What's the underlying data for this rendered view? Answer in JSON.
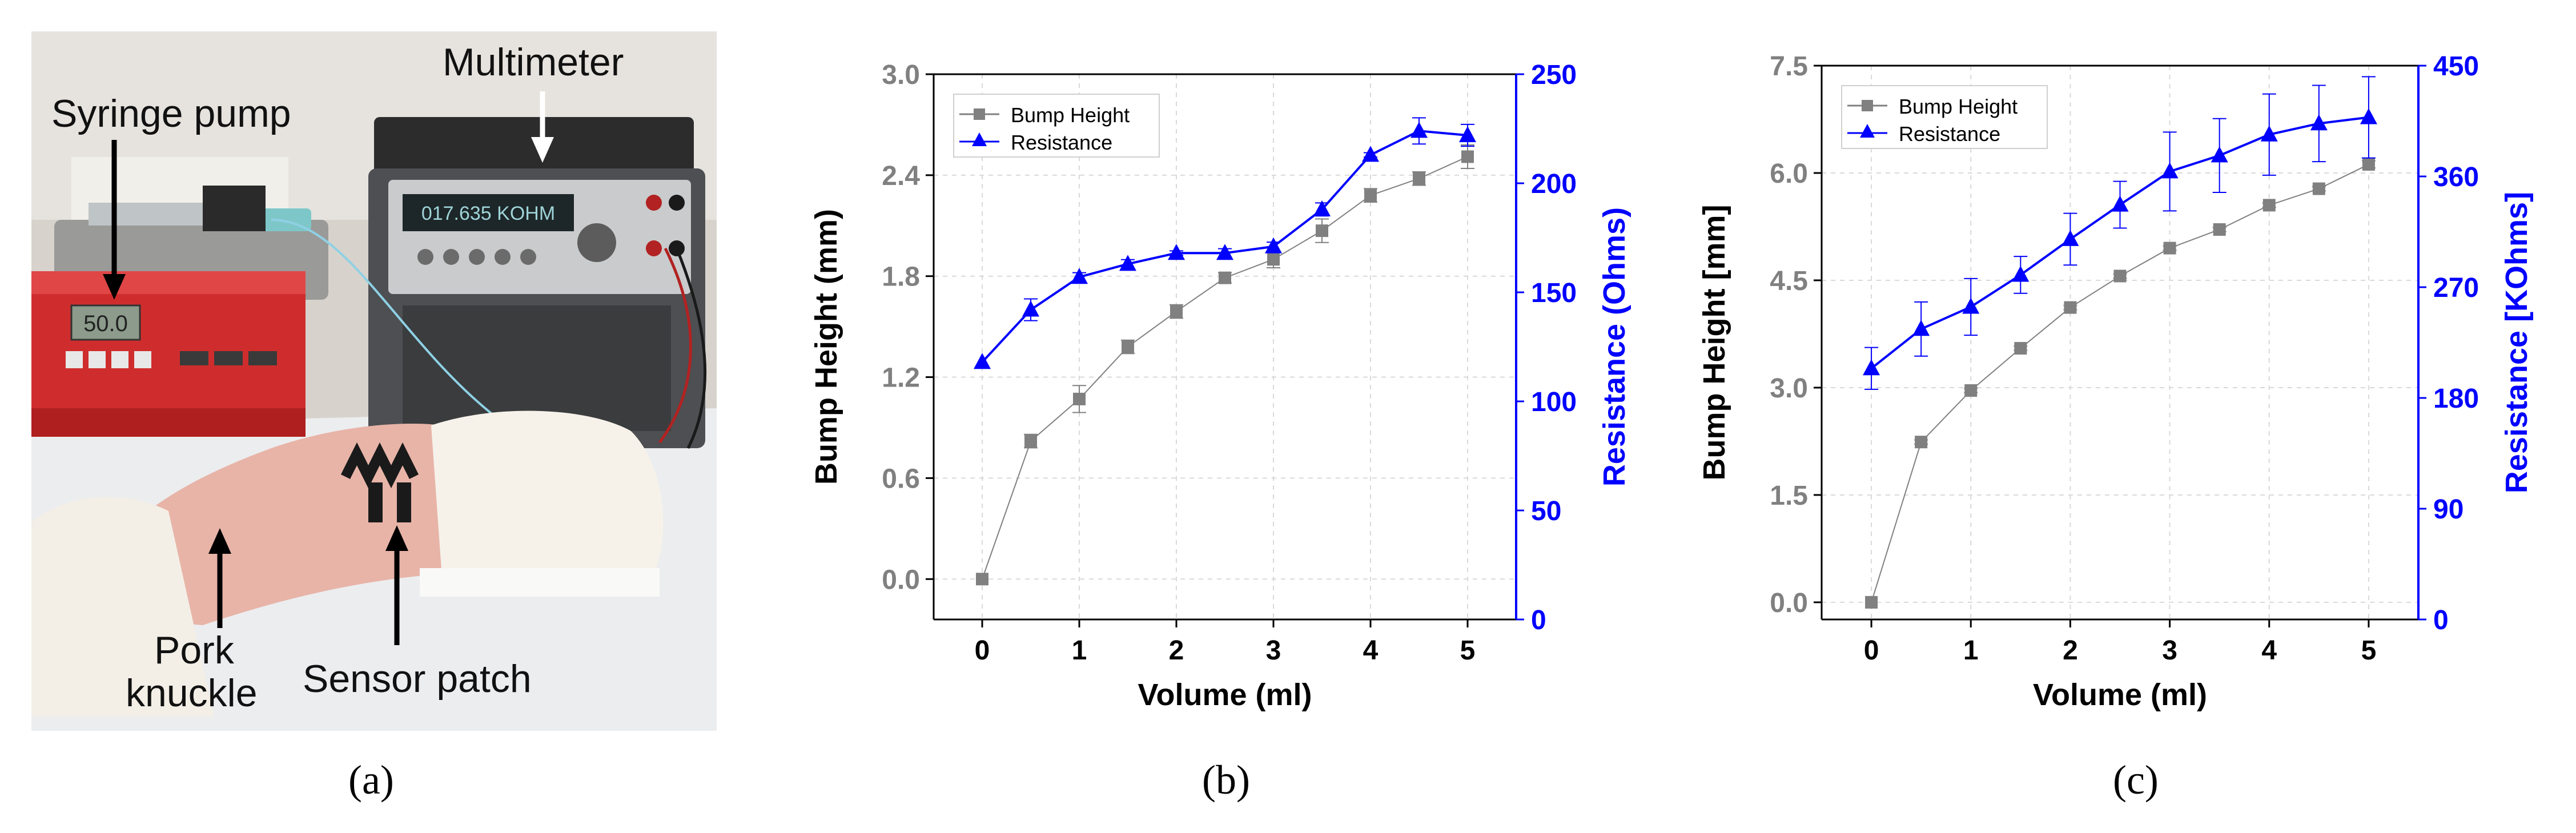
{
  "panel_a": {
    "caption": "(a)",
    "labels": {
      "syringe_pump": "Syringe pump",
      "multimeter": "Multimeter",
      "pork_line1": "Pork",
      "pork_line2": "knuckle",
      "sensor_patch": "Sensor patch",
      "pump_display": "50.0",
      "meter_display": "017.635   KOHM"
    }
  },
  "chart_data": [
    {
      "caption": "(b)",
      "type": "line",
      "xlabel": "Volume (ml)",
      "ylabel_left": "Bump Height (mm)",
      "ylabel_right": "Resistance (Ohms)",
      "xlim": [
        -0.5,
        5.5
      ],
      "ylim_left": [
        -0.24,
        3.0
      ],
      "ylim_right": [
        0,
        250
      ],
      "xticks": [
        "0",
        "1",
        "2",
        "3",
        "4",
        "5"
      ],
      "yticks_left": [
        "0.0",
        "0.6",
        "1.2",
        "1.8",
        "2.4",
        "3.0"
      ],
      "yticks_right": [
        "0",
        "50",
        "100",
        "150",
        "200",
        "250"
      ],
      "legend_position": "top-left",
      "colors": {
        "left_axis": "#808080",
        "right_axis": "#0000FF"
      },
      "series": [
        {
          "name": "Bump Height",
          "axis": "left",
          "marker": "square",
          "x": [
            0,
            0.5,
            1,
            1.5,
            2,
            2.5,
            3,
            3.5,
            4,
            4.5,
            5
          ],
          "y": [
            0.0,
            0.82,
            1.07,
            1.38,
            1.59,
            1.79,
            1.9,
            2.07,
            2.28,
            2.38,
            2.51
          ],
          "err": [
            0.0,
            0.04,
            0.08,
            0.04,
            0.04,
            0.03,
            0.05,
            0.07,
            0.04,
            0.04,
            0.07
          ]
        },
        {
          "name": "Resistance",
          "axis": "right",
          "marker": "triangle",
          "x": [
            0,
            0.5,
            1,
            1.5,
            2,
            2.5,
            3,
            3.5,
            4,
            4.5,
            5
          ],
          "y": [
            118,
            142,
            157,
            163,
            168,
            168,
            171,
            188,
            213,
            224,
            222
          ],
          "err": [
            0,
            5,
            2,
            2,
            1,
            2,
            2,
            3,
            1,
            6,
            5
          ]
        }
      ]
    },
    {
      "caption": "(c)",
      "type": "line",
      "xlabel": "Volume (ml)",
      "ylabel_left": "Bump Height [mm]",
      "ylabel_right": "Resistance [KOhms]",
      "xlim": [
        -0.5,
        5.5
      ],
      "ylim_left": [
        -0.24,
        7.5
      ],
      "ylim_right": [
        0,
        450
      ],
      "xticks": [
        "0",
        "1",
        "2",
        "3",
        "4",
        "5"
      ],
      "yticks_left": [
        "0.0",
        "1.5",
        "3.0",
        "4.5",
        "6.0",
        "7.5"
      ],
      "yticks_right": [
        "0",
        "90",
        "180",
        "270",
        "360",
        "450"
      ],
      "legend_position": "top-left",
      "colors": {
        "left_axis": "#808080",
        "right_axis": "#0000FF"
      },
      "series": [
        {
          "name": "Bump Height",
          "axis": "left",
          "marker": "square",
          "x": [
            0,
            0.5,
            1,
            1.5,
            2,
            2.5,
            3,
            3.5,
            4,
            4.5,
            5
          ],
          "y": [
            0.0,
            2.24,
            2.96,
            3.55,
            4.12,
            4.56,
            4.95,
            5.21,
            5.55,
            5.78,
            6.12
          ],
          "err": [
            0.0,
            0.03,
            0.03,
            0.03,
            0.03,
            0.03,
            0.03,
            0.03,
            0.03,
            0.03,
            0.05
          ]
        },
        {
          "name": "Resistance",
          "axis": "right",
          "marker": "triangle",
          "x": [
            0,
            0.5,
            1,
            1.5,
            2,
            2.5,
            3,
            3.5,
            4,
            4.5,
            5
          ],
          "y": [
            204,
            236,
            254,
            280,
            309,
            337,
            364,
            377,
            394,
            403,
            408
          ],
          "err": [
            17,
            22,
            23,
            15,
            21,
            19,
            32,
            30,
            33,
            31,
            33
          ]
        }
      ]
    }
  ]
}
